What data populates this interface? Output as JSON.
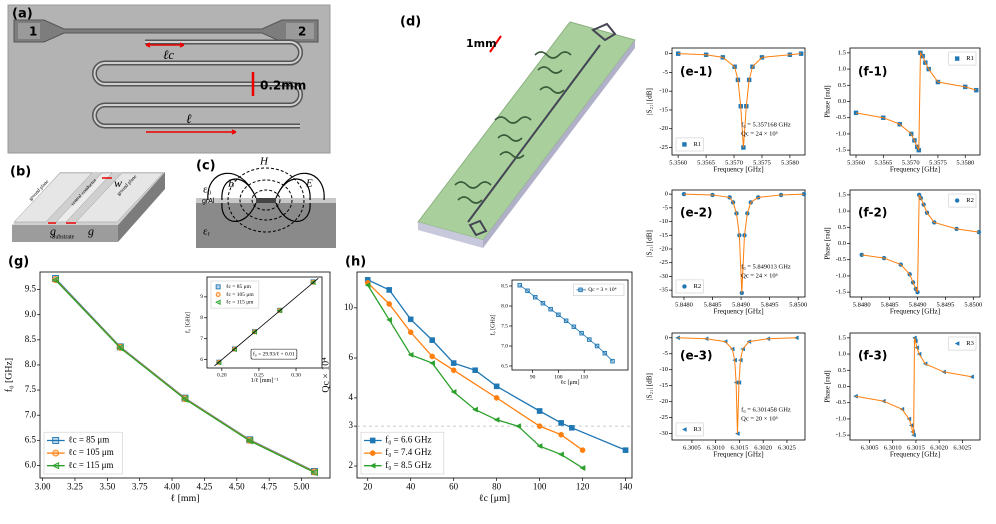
{
  "figure": {
    "a": {
      "label": "(a)",
      "port_1": "1",
      "port_2": "2",
      "lc": "ℓc",
      "scale": "0.2mm",
      "l": "ℓ"
    },
    "b": {
      "label": "(b)",
      "w": "w",
      "g_left": "g",
      "g_right": "g",
      "ground_left": "ground plane",
      "conductor": "central conductor",
      "ground_right": "ground plane",
      "substrate": "Substrate"
    },
    "c": {
      "label": "(c)",
      "e_left": "E⃗",
      "h": "H⃗",
      "e_right": "E⃗",
      "eps0": "ε₀",
      "gral": "grAl",
      "epsr": "εᵣ"
    },
    "d": {
      "label": "(d)",
      "scale": "1mm"
    }
  },
  "chart_data": [
    {
      "panel": "(g)",
      "type": "line",
      "xlabel": "ℓ [mm]",
      "ylabel": "f₀ [GHz]",
      "xlim": [
        2.98,
        5.22
      ],
      "xticks": [
        {
          "value": 3,
          "label": "3.00"
        },
        3.25,
        {
          "value": 3.5,
          "label": "3.50"
        },
        3.75,
        {
          "value": 4,
          "label": "4.00"
        },
        4.25,
        {
          "value": 4.5,
          "label": "4.50"
        },
        4.75,
        {
          "value": 5,
          "label": "5.00"
        }
      ],
      "ylim": [
        5.75,
        9.85
      ],
      "yticks": [
        {
          "value": 6,
          "label": "6.0"
        },
        6.5,
        {
          "value": 7,
          "label": "7.0"
        },
        7.5,
        {
          "value": 8,
          "label": "8.0"
        },
        8.5,
        {
          "value": 9,
          "label": "9.0"
        },
        9.5
      ],
      "x": [
        3.1,
        3.6,
        4.1,
        4.6,
        5.1
      ],
      "series": [
        {
          "name": "ℓc = 85 μm",
          "color": "#1f77b4",
          "marker": "square",
          "marker_open": true,
          "line": true,
          "values": [
            9.72,
            8.36,
            7.34,
            6.51,
            5.88
          ]
        },
        {
          "name": "ℓc = 105 μm",
          "color": "#ff7f0e",
          "marker": "circle",
          "marker_open": true,
          "line": true,
          "values": [
            9.7,
            8.35,
            7.33,
            6.5,
            5.87
          ]
        },
        {
          "name": "ℓc = 115 μm",
          "color": "#2ca02c",
          "marker": "triangle-left",
          "marker_open": true,
          "line": true,
          "values": [
            9.69,
            8.34,
            7.32,
            6.49,
            5.86
          ]
        }
      ],
      "legend": "lower left"
    },
    {
      "type": "line",
      "xlabel": "1/ℓ [mm]⁻¹",
      "ylabel": "f₀ [GHz]",
      "xlim": [
        0.18,
        0.335
      ],
      "xticks": [
        {
          "value": 0.2,
          "label": "0.20"
        },
        0.25,
        {
          "value": 0.3,
          "label": "0.30"
        }
      ],
      "ylim": [
        5.6,
        9.95
      ],
      "yticks": [
        6,
        7,
        8,
        9
      ],
      "x": [
        0.323,
        0.278,
        0.244,
        0.217,
        0.196
      ],
      "series": [
        {
          "name": "ℓc = 85 μm",
          "color": "#1f77b4",
          "marker": "square",
          "marker_open": true,
          "values": [
            9.72,
            8.36,
            7.34,
            6.51,
            5.88
          ]
        },
        {
          "name": "ℓc = 105 μm",
          "color": "#ff7f0e",
          "marker": "circle",
          "marker_open": true,
          "values": [
            9.7,
            8.35,
            7.33,
            6.5,
            5.87
          ]
        },
        {
          "name": "ℓc = 115 μm",
          "color": "#2ca02c",
          "marker": "triangle-left",
          "marker_open": true,
          "values": [
            9.69,
            8.34,
            7.32,
            6.49,
            5.86
          ]
        },
        {
          "color": "#000000",
          "line": true,
          "x": [
            0.19,
            0.33
          ],
          "values": [
            5.7,
            9.89
          ]
        }
      ],
      "legend": "upper left",
      "annotations": [
        "f₀ = 29.93/ℓ + 0.01"
      ]
    },
    {
      "panel": "(h)",
      "type": "line",
      "log_y": true,
      "xlabel": "ℓc [μm]",
      "ylabel": "Qc × 10⁴",
      "xlim": [
        15,
        143
      ],
      "xticks": [
        20,
        40,
        60,
        80,
        100,
        120,
        140
      ],
      "ylim": [
        1.77,
        14.4
      ],
      "yticks": [
        2,
        3,
        4,
        6,
        10
      ],
      "hline": 3,
      "series": [
        {
          "name": "f₀ = 6.6 GHz",
          "color": "#1f77b4",
          "marker": "square",
          "line": true,
          "x": [
            20,
            30,
            40,
            50,
            60,
            70,
            80,
            100,
            110,
            115,
            140
          ],
          "values": [
            13.3,
            12.0,
            8.9,
            7.2,
            5.7,
            5.3,
            4.5,
            3.5,
            3.1,
            2.95,
            2.35
          ]
        },
        {
          "name": "f₀ = 7.4 GHz",
          "color": "#ff7f0e",
          "marker": "circle",
          "line": true,
          "x": [
            20,
            30,
            40,
            50,
            60,
            80,
            100,
            110,
            120
          ],
          "values": [
            12.9,
            10.4,
            7.8,
            6.1,
            5.3,
            4.0,
            3.0,
            2.75,
            2.35
          ]
        },
        {
          "name": "f₀ = 8.5 GHz",
          "color": "#2ca02c",
          "marker": "triangle-left",
          "line": true,
          "x": [
            20,
            30,
            40,
            50,
            60,
            70,
            80,
            90,
            100,
            110,
            120
          ],
          "values": [
            12.6,
            8.85,
            6.2,
            5.7,
            4.25,
            3.55,
            3.2,
            3.0,
            2.45,
            2.25,
            1.96
          ]
        }
      ],
      "legend": "lower left"
    },
    {
      "type": "line",
      "xlabel": "ℓc [μm]",
      "ylabel": "f₀ [GHz]",
      "xlim": [
        82,
        127
      ],
      "xticks": [
        90,
        100,
        110
      ],
      "ylim": [
        6.4,
        8.65
      ],
      "yticks": [
        6.5,
        {
          "value": 7,
          "label": "7.0"
        },
        7.5,
        {
          "value": 8,
          "label": "8.0"
        },
        8.5
      ],
      "x": [
        85,
        88,
        91,
        94,
        97,
        100,
        103,
        106,
        109,
        112,
        115,
        118,
        121
      ],
      "series": [
        {
          "name": "Qc = 3 × 10⁴",
          "color": "#1f77b4",
          "marker": "square",
          "marker_open": true,
          "line": true,
          "values": [
            8.52,
            8.38,
            8.22,
            8.07,
            7.92,
            7.78,
            7.63,
            7.48,
            7.32,
            7.16,
            7.0,
            6.82,
            6.62
          ]
        }
      ],
      "legend": "upper right"
    },
    {
      "panel": "(e-1)",
      "type": "line",
      "xlabel": "Frequency [GHz]",
      "ylabel": "|S₂₁| [dB]",
      "xlim": [
        5.35589,
        5.35827
      ],
      "xticks": [
        {
          "value": 5.356,
          "label": "5.3560"
        },
        5.3565,
        {
          "value": 5.357,
          "label": "5.3570"
        },
        5.3575,
        {
          "value": 5.358,
          "label": "5.3580"
        }
      ],
      "ylim": [
        -27,
        1.5
      ],
      "yticks": [
        0,
        -5,
        -10,
        -15,
        -20,
        -25
      ],
      "x": [
        5.356,
        5.3565,
        5.3568,
        5.35701,
        5.35707,
        5.35712,
        5.357168,
        5.35722,
        5.35727,
        5.35733,
        5.3575,
        5.358,
        5.3582
      ],
      "series": [
        {
          "name": "R1",
          "color": "#1f77b4",
          "marker": "square",
          "values": [
            0,
            -0.3,
            -1,
            -3.5,
            -7,
            -14,
            -25,
            -14,
            -7,
            -3.5,
            -1,
            -0.3,
            0
          ]
        },
        {
          "color": "#ff7f0e",
          "line": true,
          "values": [
            0,
            -0.3,
            -1,
            -3.5,
            -7,
            -14,
            -25,
            -14,
            -7,
            -3.5,
            -1,
            -0.3,
            0
          ]
        }
      ],
      "legend": "lower left",
      "annotations": [
        "f₀ = 5.357168 GHz",
        "Qc = 24 × 10³"
      ]
    },
    {
      "panel": "(f-1)",
      "type": "line",
      "xlabel": "Frequency [GHz]",
      "ylabel": "Phase [rad]",
      "xlim": [
        5.35589,
        5.35827
      ],
      "xticks": [
        {
          "value": 5.356,
          "label": "5.3560"
        },
        5.3565,
        {
          "value": 5.357,
          "label": "5.3570"
        },
        5.3575,
        {
          "value": 5.358,
          "label": "5.3580"
        }
      ],
      "ylim": [
        -1.65,
        1.65
      ],
      "yticks": [
        -1.5,
        {
          "value": -1,
          "label": "-1.0"
        },
        -0.5,
        {
          "value": 0,
          "label": "0.0"
        },
        0.5,
        {
          "value": 1,
          "label": "1.0"
        },
        1.5
      ],
      "x": [
        5.356,
        5.3565,
        5.3568,
        5.35701,
        5.35707,
        5.35712,
        5.35715,
        5.35718,
        5.35722,
        5.35727,
        5.35733,
        5.3575,
        5.358,
        5.3582
      ],
      "series": [
        {
          "name": "R1",
          "color": "#1f77b4",
          "marker": "square",
          "values": [
            -0.35,
            -0.5,
            -0.7,
            -1.0,
            -1.2,
            -1.4,
            -1.5,
            1.5,
            1.4,
            1.2,
            1.0,
            0.6,
            0.45,
            0.35
          ]
        },
        {
          "color": "#ff7f0e",
          "line": true,
          "values": [
            -0.35,
            -0.5,
            -0.7,
            -1.0,
            -1.2,
            -1.4,
            -1.5,
            1.5,
            1.4,
            1.2,
            1.0,
            0.6,
            0.45,
            0.35
          ]
        }
      ],
      "legend": "upper right"
    },
    {
      "panel": "(e-2)",
      "type": "line",
      "xlabel": "Frequency [GHz]",
      "ylabel": "|S₂₁| [dB]",
      "xlim": [
        5.84779,
        5.85012
      ],
      "xticks": [
        {
          "value": 5.848,
          "label": "5.8480"
        },
        5.8485,
        {
          "value": 5.849,
          "label": "5.8490"
        },
        5.8495,
        {
          "value": 5.85,
          "label": "5.8500"
        }
      ],
      "ylim": [
        -37.5,
        1.5
      ],
      "yticks": [
        0,
        -5,
        -10,
        -15,
        -20,
        -25,
        -30,
        -35
      ],
      "x": [
        5.848,
        5.8485,
        5.8488,
        5.84886,
        5.84892,
        5.84897,
        5.849013,
        5.84906,
        5.84911,
        5.84917,
        5.8493,
        5.8497,
        5.8501
      ],
      "series": [
        {
          "name": "R2",
          "color": "#1f77b4",
          "marker": "circle",
          "values": [
            0,
            -0.3,
            -1.2,
            -3,
            -7,
            -15,
            -36,
            -15,
            -7,
            -3,
            -1.2,
            -0.3,
            0
          ]
        },
        {
          "color": "#ff7f0e",
          "line": true,
          "values": [
            0,
            -0.3,
            -1.2,
            -3,
            -7,
            -15,
            -36,
            -15,
            -7,
            -3,
            -1.2,
            -0.3,
            0
          ]
        }
      ],
      "legend": "lower left",
      "annotations": [
        "f₀ = 5.849013 GHz",
        "Qc = 24 × 10³"
      ]
    },
    {
      "panel": "(f-2)",
      "type": "line",
      "xlabel": "Frequency [GHz]",
      "ylabel": "Phase [rad]",
      "xlim": [
        5.84779,
        5.85012
      ],
      "xticks": [
        {
          "value": 5.848,
          "label": "5.8480"
        },
        5.8485,
        {
          "value": 5.849,
          "label": "5.8490"
        },
        5.8495,
        {
          "value": 5.85,
          "label": "5.8500"
        }
      ],
      "ylim": [
        -1.65,
        1.65
      ],
      "yticks": [
        -1.5,
        {
          "value": -1,
          "label": "-1.0"
        },
        -0.5,
        {
          "value": 0,
          "label": "0.0"
        },
        0.5,
        {
          "value": 1,
          "label": "1.0"
        },
        1.5
      ],
      "x": [
        5.848,
        5.8484,
        5.8487,
        5.84886,
        5.84892,
        5.84897,
        5.849,
        5.84903,
        5.84906,
        5.84911,
        5.84917,
        5.8493,
        5.8497,
        5.8501
      ],
      "series": [
        {
          "name": "R2",
          "color": "#1f77b4",
          "marker": "circle",
          "values": [
            -0.35,
            -0.45,
            -0.65,
            -0.95,
            -1.2,
            -1.4,
            -1.5,
            1.5,
            1.4,
            1.2,
            0.95,
            0.65,
            0.45,
            0.35
          ]
        },
        {
          "color": "#ff7f0e",
          "line": true,
          "values": [
            -0.35,
            -0.45,
            -0.65,
            -0.95,
            -1.2,
            -1.4,
            -1.5,
            1.5,
            1.4,
            1.2,
            0.95,
            0.65,
            0.45,
            0.35
          ]
        }
      ],
      "legend": "upper right"
    },
    {
      "panel": "(e-3)",
      "type": "line",
      "xlabel": "Frequency [GHz]",
      "ylabel": "|S₂₁| [dB]",
      "xlim": [
        6.30008,
        6.30288
      ],
      "xticks": [
        6.3005,
        {
          "value": 6.301,
          "label": "6.3010"
        },
        6.3015,
        {
          "value": 6.302,
          "label": "6.3020"
        },
        6.3025
      ],
      "ylim": [
        -32,
        1.5
      ],
      "yticks": [
        0,
        -5,
        -10,
        -15,
        -20,
        -25,
        -30
      ],
      "x": [
        6.3002,
        6.3008,
        6.3012,
        6.30135,
        6.3014,
        6.30143,
        6.301458,
        6.30149,
        6.30152,
        6.30157,
        6.3017,
        6.3021,
        6.3027
      ],
      "series": [
        {
          "name": "R3",
          "color": "#1f77b4",
          "marker": "triangle-left",
          "values": [
            0,
            -0.3,
            -1.2,
            -3.5,
            -7,
            -14,
            -30,
            -14,
            -7,
            -3.5,
            -1.2,
            -0.3,
            0
          ]
        },
        {
          "color": "#ff7f0e",
          "line": true,
          "values": [
            0,
            -0.3,
            -1.2,
            -3.5,
            -7,
            -14,
            -30,
            -14,
            -7,
            -3.5,
            -1.2,
            -0.3,
            0
          ]
        }
      ],
      "legend": "lower left",
      "annotations": [
        "f₀ = 6.301458 GHz",
        "Qc = 20 × 10³"
      ]
    },
    {
      "panel": "(f-3)",
      "type": "line",
      "xlabel": "Frequency [GHz]",
      "ylabel": "Phase [rad]",
      "xlim": [
        6.30008,
        6.30288
      ],
      "xticks": [
        6.3005,
        {
          "value": 6.301,
          "label": "6.3010"
        },
        6.3015,
        {
          "value": 6.302,
          "label": "6.3020"
        },
        6.3025
      ],
      "ylim": [
        -1.65,
        1.65
      ],
      "yticks": [
        -1.5,
        {
          "value": -1,
          "label": "-1.0"
        },
        -0.5,
        {
          "value": 0,
          "label": "0.0"
        },
        0.5,
        {
          "value": 1,
          "label": "1.0"
        },
        1.5
      ],
      "x": [
        6.3002,
        6.3008,
        6.3012,
        6.30135,
        6.3014,
        6.30143,
        6.30145,
        6.30147,
        6.30149,
        6.30152,
        6.30157,
        6.3017,
        6.3021,
        6.3027
      ],
      "series": [
        {
          "name": "R3",
          "color": "#1f77b4",
          "marker": "triangle-left",
          "values": [
            -0.3,
            -0.45,
            -0.7,
            -1.0,
            -1.2,
            -1.4,
            -1.5,
            1.5,
            1.4,
            1.2,
            1.0,
            0.7,
            0.45,
            0.3
          ]
        },
        {
          "color": "#ff7f0e",
          "line": true,
          "values": [
            -0.3,
            -0.45,
            -0.7,
            -1.0,
            -1.2,
            -1.4,
            -1.5,
            1.5,
            1.4,
            1.2,
            1.0,
            0.7,
            0.45,
            0.3
          ]
        }
      ],
      "legend": "upper right"
    }
  ]
}
